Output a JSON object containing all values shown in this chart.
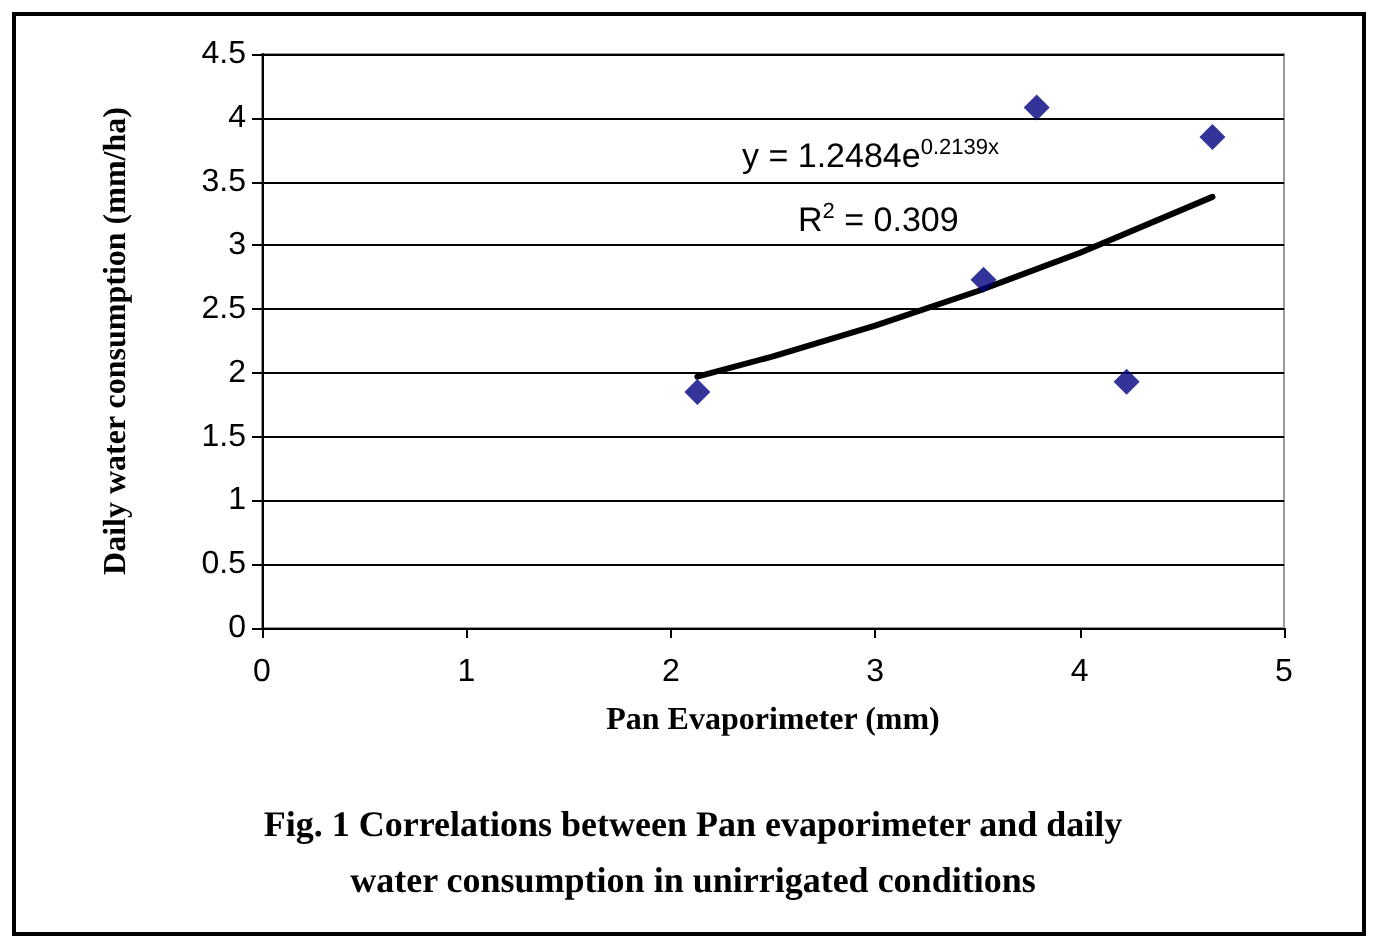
{
  "chart_data": {
    "type": "scatter",
    "xlabel": "Pan Evaporimeter (mm)",
    "ylabel": "Daily water consumption (mm/ha)",
    "annotations": [
      "y = 1.2484e$^{0.2139x}$",
      "R$^{2}$ = 0.309",
      "Fig. 1 Correlations between Pan evaporimeter and daily water consumption in unirrigated conditions"
    ],
    "series": [
      {
        "color": "#000080",
        "marker": "diamond",
        "x": [
          2.13,
          3.53,
          3.79,
          4.23,
          4.65
        ],
        "values": [
          1.85,
          2.73,
          4.08,
          1.93,
          3.85
        ]
      },
      {
        "type": "line",
        "color": "#000000",
        "marker": "none",
        "x": [
          2.13,
          2.5,
          3,
          3.5,
          4,
          4.65
        ],
        "values": [
          1.97,
          2.13,
          2.37,
          2.64,
          2.94,
          3.38
        ]
      }
    ],
    "xlim": [
      0,
      5
    ],
    "xticks": [
      0,
      1,
      2,
      3,
      4,
      5
    ],
    "ylim": [
      0,
      4.5
    ],
    "yticks": [
      0,
      0.5,
      1,
      1.5,
      2,
      2.5,
      3,
      3.5,
      4,
      4.5
    ],
    "grid": "y"
  }
}
